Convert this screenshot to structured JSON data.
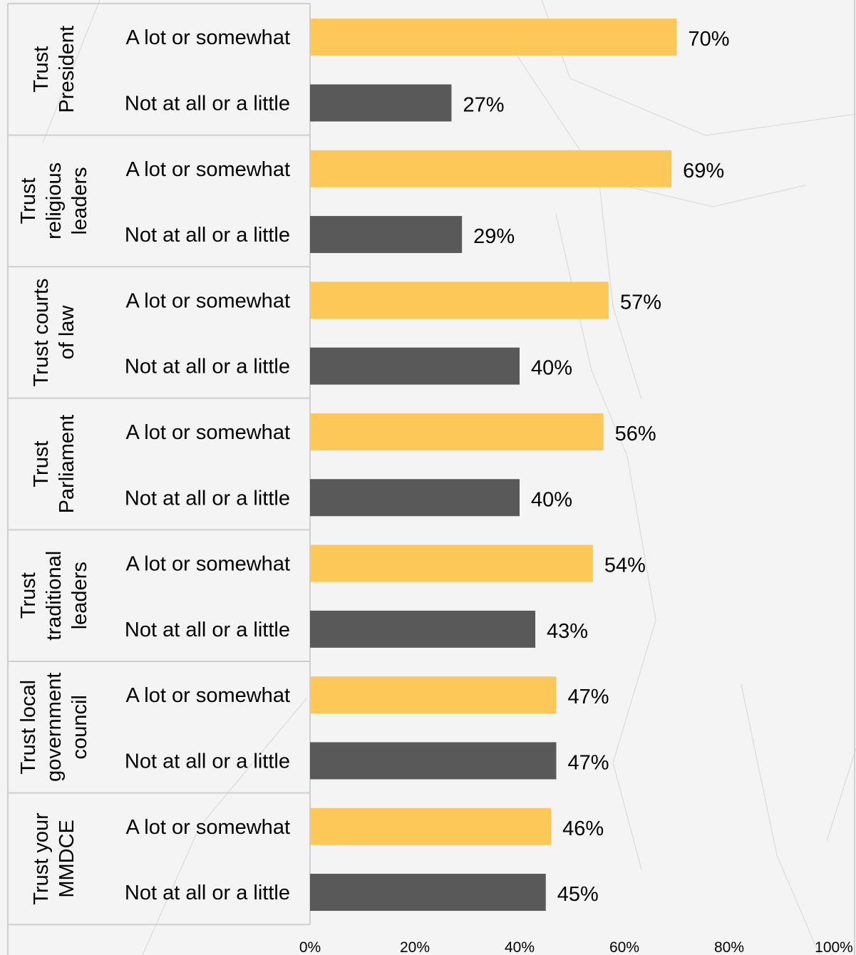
{
  "chart_data": {
    "type": "bar",
    "orientation": "horizontal",
    "xlim": [
      0,
      100
    ],
    "x_tick_labels": [
      "0%",
      "20%",
      "40%",
      "60%",
      "80%",
      "100%"
    ],
    "legend": "none",
    "grid": false,
    "colors": {
      "positive": "#fec859",
      "negative": "#595959",
      "background": "#f4f4f4"
    },
    "groups": [
      {
        "label": "Trust President",
        "label_lines": [
          "Trust",
          "President"
        ],
        "bars": [
          {
            "category": "A lot or somewhat",
            "value": 70,
            "label": "70%",
            "color": "#fec859"
          },
          {
            "category": "Not at all or a little",
            "value": 27,
            "label": "27%",
            "color": "#595959"
          }
        ]
      },
      {
        "label": "Trust religious leaders",
        "label_lines": [
          "Trust",
          "religious",
          "leaders"
        ],
        "bars": [
          {
            "category": "A lot or somewhat",
            "value": 69,
            "label": "69%",
            "color": "#fec859"
          },
          {
            "category": "Not at all or a little",
            "value": 29,
            "label": "29%",
            "color": "#595959"
          }
        ]
      },
      {
        "label": "Trust courts of law",
        "label_lines": [
          "Trust courts",
          "of law"
        ],
        "bars": [
          {
            "category": "A lot or somewhat",
            "value": 57,
            "label": "57%",
            "color": "#fec859"
          },
          {
            "category": "Not at all or a little",
            "value": 40,
            "label": "40%",
            "color": "#595959"
          }
        ]
      },
      {
        "label": "Trust Parliament",
        "label_lines": [
          "Trust",
          "Parliament"
        ],
        "bars": [
          {
            "category": "A lot or somewhat",
            "value": 56,
            "label": "56%",
            "color": "#fec859"
          },
          {
            "category": "Not at all or a little",
            "value": 40,
            "label": "40%",
            "color": "#595959"
          }
        ]
      },
      {
        "label": "Trust traditional leaders",
        "label_lines": [
          "Trust",
          "traditional",
          "leaders"
        ],
        "bars": [
          {
            "category": "A lot or somewhat",
            "value": 54,
            "label": "54%",
            "color": "#fec859"
          },
          {
            "category": "Not at all or a little",
            "value": 43,
            "label": "43%",
            "color": "#595959"
          }
        ]
      },
      {
        "label": "Trust local government council",
        "label_lines": [
          "Trust local",
          "government",
          "council"
        ],
        "bars": [
          {
            "category": "A lot or somewhat",
            "value": 47,
            "label": "47%",
            "color": "#fec859"
          },
          {
            "category": "Not at all or a little",
            "value": 47,
            "label": "47%",
            "color": "#595959"
          }
        ]
      },
      {
        "label": "Trust your MMDCE",
        "label_lines": [
          "Trust your",
          "MMDCE"
        ],
        "bars": [
          {
            "category": "A lot or somewhat",
            "value": 46,
            "label": "46%",
            "color": "#fec859"
          },
          {
            "category": "Not at all or a little",
            "value": 45,
            "label": "45%",
            "color": "#595959"
          }
        ]
      }
    ]
  }
}
